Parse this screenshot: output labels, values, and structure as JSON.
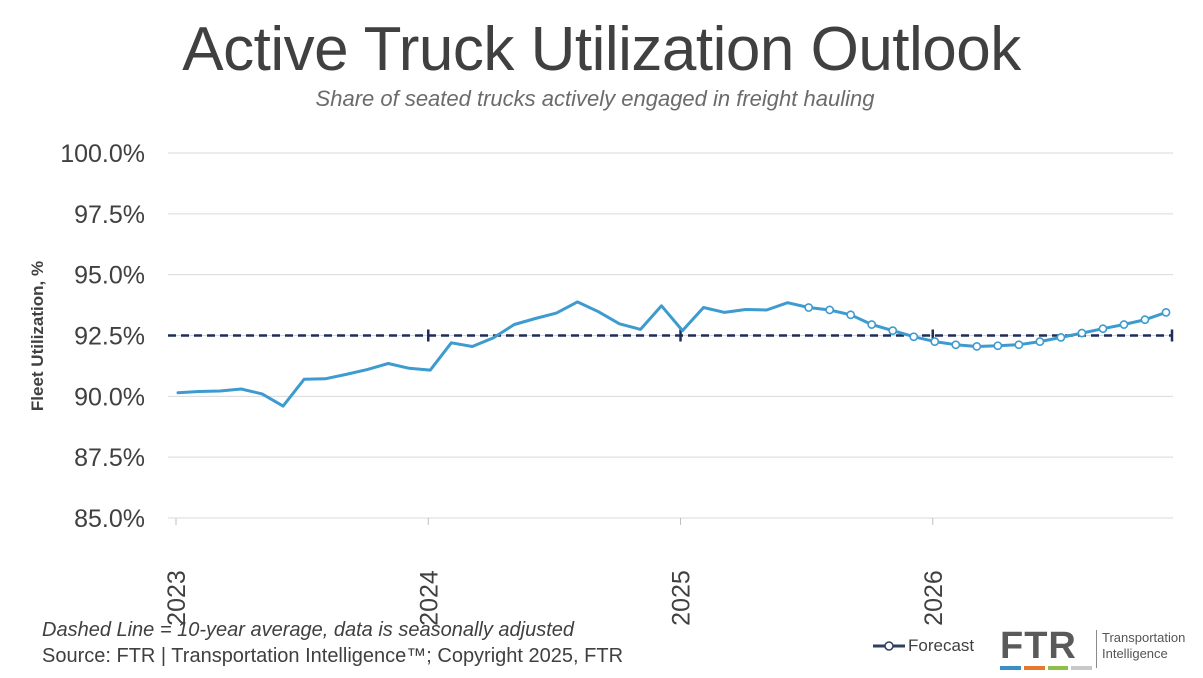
{
  "title": "Active Truck Utilization Outlook",
  "subtitle": "Share of seated trucks actively engaged in freight hauling",
  "footnote": "Dashed Line = 10-year average, data is seasonally adjusted",
  "source": "Source: FTR | Transportation Intelligence™; Copyright 2025, FTR",
  "legend": {
    "forecast_label": "Forecast"
  },
  "logo": {
    "mark": "FTR",
    "line1": "Transportation",
    "line2": "Intelligence",
    "stripe_colors": [
      "#3a8fc9",
      "#e8792b",
      "#8cc04b",
      "#c9c9c9"
    ]
  },
  "colors": {
    "line": "#3d9bd0",
    "average": "#1f2d5a",
    "grid": "#d9d9d9",
    "text": "#404040"
  },
  "chart_data": {
    "type": "line",
    "title": "Active Truck Utilization Outlook",
    "subtitle": "Share of seated trucks actively engaged in freight hauling",
    "ylabel": "Fleet Utilization, %",
    "xlabel": "",
    "ylim": [
      85.0,
      100.0
    ],
    "y_ticks": [
      "85.0%",
      "87.5%",
      "90.0%",
      "92.5%",
      "95.0%",
      "97.5%",
      "100.0%"
    ],
    "y_tick_values": [
      85.0,
      87.5,
      90.0,
      92.5,
      95.0,
      97.5,
      100.0
    ],
    "x_ticks": [
      "2023",
      "2024",
      "2025",
      "2026"
    ],
    "x_tick_indices": [
      0,
      12,
      24,
      36
    ],
    "grid": "horizontal",
    "legend_position": "bottom-right",
    "average_line": 92.5,
    "months": [
      "Jan 2023",
      "Feb 2023",
      "Mar 2023",
      "Apr 2023",
      "May 2023",
      "Jun 2023",
      "Jul 2023",
      "Aug 2023",
      "Sep 2023",
      "Oct 2023",
      "Nov 2023",
      "Dec 2023",
      "Jan 2024",
      "Feb 2024",
      "Mar 2024",
      "Apr 2024",
      "May 2024",
      "Jun 2024",
      "Jul 2024",
      "Aug 2024",
      "Sep 2024",
      "Oct 2024",
      "Nov 2024",
      "Dec 2024",
      "Jan 2025",
      "Feb 2025",
      "Mar 2025",
      "Apr 2025",
      "May 2025",
      "Jun 2025",
      "Jul 2025",
      "Aug 2025",
      "Sep 2025",
      "Oct 2025",
      "Nov 2025",
      "Dec 2025",
      "Jan 2026",
      "Feb 2026",
      "Mar 2026",
      "Apr 2026",
      "May 2026",
      "Jun 2026",
      "Jul 2026",
      "Aug 2026",
      "Sep 2026",
      "Oct 2026",
      "Nov 2026",
      "Dec 2026"
    ],
    "series": [
      {
        "kind": "actual",
        "values": [
          90.15,
          90.2,
          90.22,
          90.3,
          90.1,
          89.6,
          90.7,
          90.72,
          90.9,
          91.1,
          91.35,
          91.15,
          91.08,
          92.2,
          92.05,
          92.4,
          92.95,
          93.2,
          93.42,
          93.88,
          93.48,
          92.98,
          92.75,
          93.72,
          92.7,
          93.65,
          93.45,
          93.57,
          93.55,
          93.85,
          93.65
        ]
      },
      {
        "name": "Forecast",
        "kind": "forecast",
        "start_index": 30,
        "values": [
          93.65,
          93.55,
          93.35,
          92.95,
          92.7,
          92.45,
          92.25,
          92.12,
          92.05,
          92.08,
          92.12,
          92.25,
          92.42,
          92.6,
          92.78,
          92.95,
          93.15,
          93.45
        ]
      }
    ]
  }
}
